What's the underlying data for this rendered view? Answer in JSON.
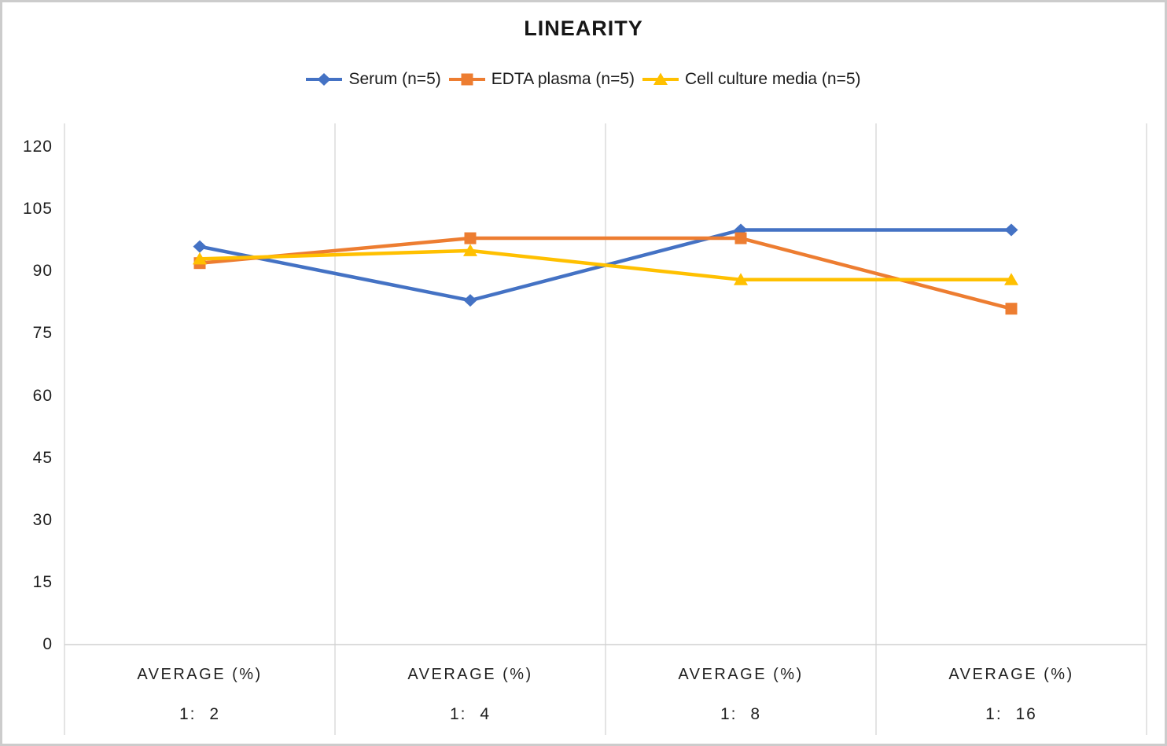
{
  "title": "LINEARITY",
  "legend": {
    "items": [
      {
        "label": "Serum (n=5)",
        "color": "#4472C4",
        "marker": "diamond"
      },
      {
        "label": "EDTA plasma (n=5)",
        "color": "#ED7D31",
        "marker": "square"
      },
      {
        "label": "Cell culture media (n=5)",
        "color": "#FFC000",
        "marker": "triangle"
      }
    ]
  },
  "chart_data": {
    "type": "line",
    "title": "LINEARITY",
    "categories": [
      {
        "line1": "AVERAGE (%)",
        "line2": "1: 2"
      },
      {
        "line1": "AVERAGE (%)",
        "line2": "1: 4"
      },
      {
        "line1": "AVERAGE (%)",
        "line2": "1: 8"
      },
      {
        "line1": "AVERAGE (%)",
        "line2": "1: 16"
      }
    ],
    "series": [
      {
        "name": "Serum (n=5)",
        "marker": "diamond",
        "color": "#4472C4",
        "values": [
          96,
          83,
          100,
          100
        ]
      },
      {
        "name": "EDTA plasma (n=5)",
        "marker": "square",
        "color": "#ED7D31",
        "values": [
          92,
          98,
          98,
          81
        ]
      },
      {
        "name": "Cell culture media (n=5)",
        "marker": "triangle",
        "color": "#FFC000",
        "values": [
          93,
          95,
          88,
          88
        ]
      }
    ],
    "y_ticks": [
      0,
      15,
      30,
      45,
      60,
      75,
      90,
      105,
      120
    ],
    "ylim": [
      0,
      126
    ],
    "xlabel": "",
    "ylabel": "",
    "grid": "vertical-only",
    "legend_position": "top"
  },
  "colors": {
    "grid": "#D9D9D9",
    "axis": "#D0D0D0",
    "text": "#1f1f1f",
    "background": "#FFFFFF",
    "border": "#CCCCCC"
  }
}
